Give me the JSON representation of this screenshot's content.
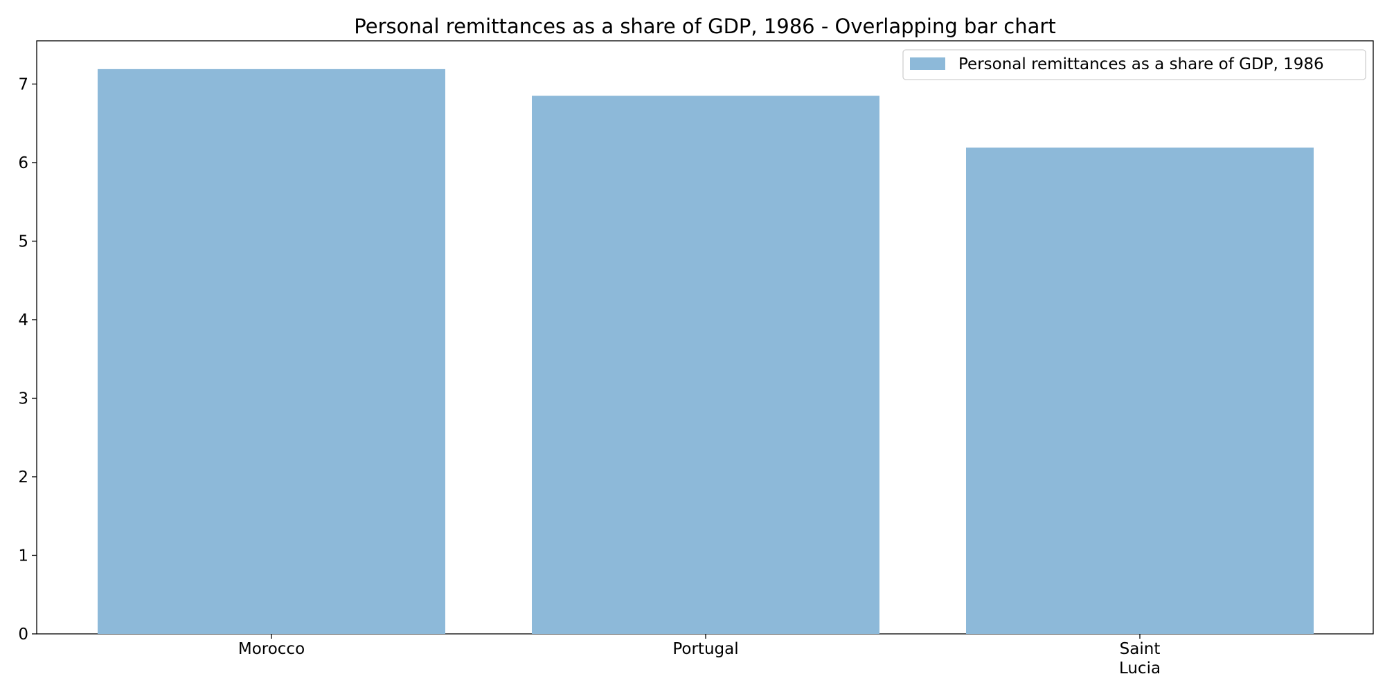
{
  "chart_data": {
    "type": "bar",
    "title": "Personal remittances as a share of GDP, 1986 - Overlapping bar chart",
    "xlabel": "",
    "ylabel": "",
    "categories": [
      "Morocco",
      "Portugal",
      "Saint\nLucia"
    ],
    "series": [
      {
        "name": "Personal remittances as a share of GDP, 1986",
        "values": [
          7.19,
          6.85,
          6.19
        ],
        "color": "#8db9d9"
      }
    ],
    "yticks": [
      0,
      1,
      2,
      3,
      4,
      5,
      6,
      7
    ],
    "ylim": [
      0,
      7.55
    ],
    "grid": false,
    "legend_position": "top-right"
  }
}
